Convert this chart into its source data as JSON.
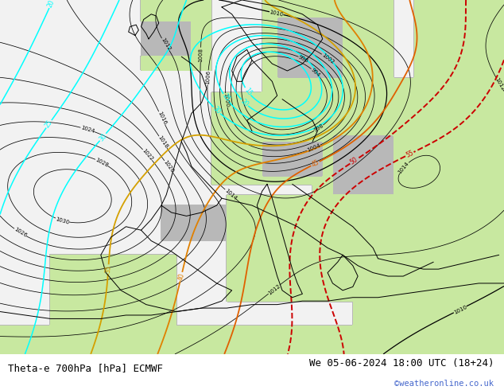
{
  "title_left": "Theta-e 700hPa [hPa] ECMWF",
  "title_right": "We 05-06-2024 18:00 UTC (18+24)",
  "copyright": "©weatheronline.co.uk",
  "title_color": "#000000",
  "copyright_color": "#4466cc",
  "figsize": [
    6.34,
    4.9
  ],
  "dpi": 100,
  "font_size_title": 9.0,
  "font_size_copyright": 7.5,
  "bottom_bg": "#d8d8d8",
  "map_bg": "#f0f0f0"
}
